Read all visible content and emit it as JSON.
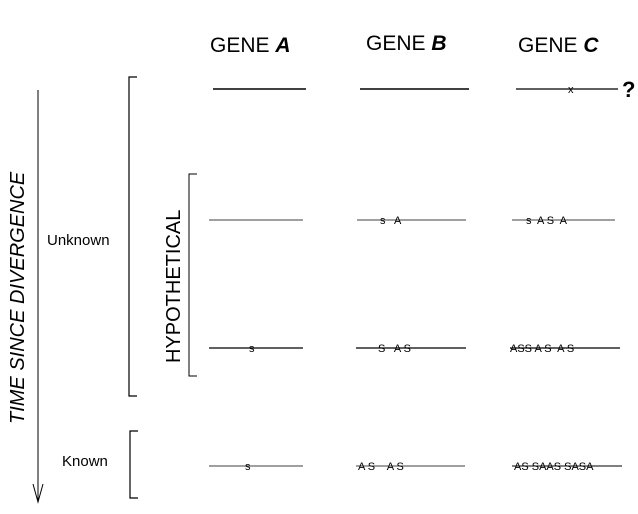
{
  "headers": {
    "gene_a": {
      "prefix": "GENE ",
      "letter": "A"
    },
    "gene_b": {
      "prefix": "GENE ",
      "letter": "B"
    },
    "gene_c": {
      "prefix": "GENE ",
      "letter": "C"
    }
  },
  "axis": {
    "label": "TIME SINCE DIVERGENCE"
  },
  "brackets": {
    "unknown": "Unknown",
    "hypothetical": "HYPOTHETICAL",
    "known": "Known"
  },
  "rows": {
    "top": {
      "a": "",
      "b": "",
      "c": "x",
      "c_suffix": "?"
    },
    "h1": {
      "a": "",
      "b": "s   A",
      "c": "s  A S  A"
    },
    "h2": {
      "a": "s",
      "b": "S   A S",
      "c": "ASS A S  A S"
    },
    "known": {
      "a": "s",
      "b": "A S    A S",
      "c": "AS SAAS SASA"
    }
  }
}
